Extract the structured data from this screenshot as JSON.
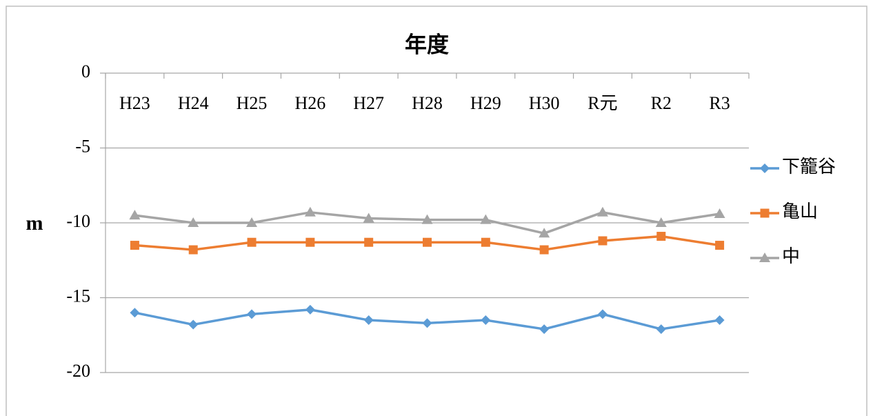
{
  "chart_data": {
    "type": "line",
    "x_label": "年度",
    "y_label": "m",
    "categories": [
      "H23",
      "H24",
      "H25",
      "H26",
      "H27",
      "H28",
      "H29",
      "H30",
      "R元",
      "R2",
      "R3"
    ],
    "series": [
      {
        "name": "下籠谷",
        "color": "#5b9bd5",
        "marker": "diamond",
        "values": [
          -16.0,
          -16.8,
          -16.1,
          -15.8,
          -16.5,
          -16.7,
          -16.5,
          -17.1,
          -16.1,
          -17.1,
          -16.5
        ]
      },
      {
        "name": "亀山",
        "color": "#ed7d31",
        "marker": "square",
        "values": [
          -11.5,
          -11.8,
          -11.3,
          -11.3,
          -11.3,
          -11.3,
          -11.3,
          -11.8,
          -11.2,
          -10.9,
          -11.5
        ]
      },
      {
        "name": "中",
        "color": "#a5a5a5",
        "marker": "triangle",
        "values": [
          -9.5,
          -10.0,
          -10.0,
          -9.3,
          -9.7,
          -9.8,
          -9.8,
          -10.7,
          -9.3,
          -10.0,
          -9.4
        ]
      }
    ],
    "ylim": [
      -20,
      0
    ],
    "yticks": [
      0,
      -5,
      -10,
      -15,
      -20
    ],
    "grid": true,
    "legend": "right"
  }
}
